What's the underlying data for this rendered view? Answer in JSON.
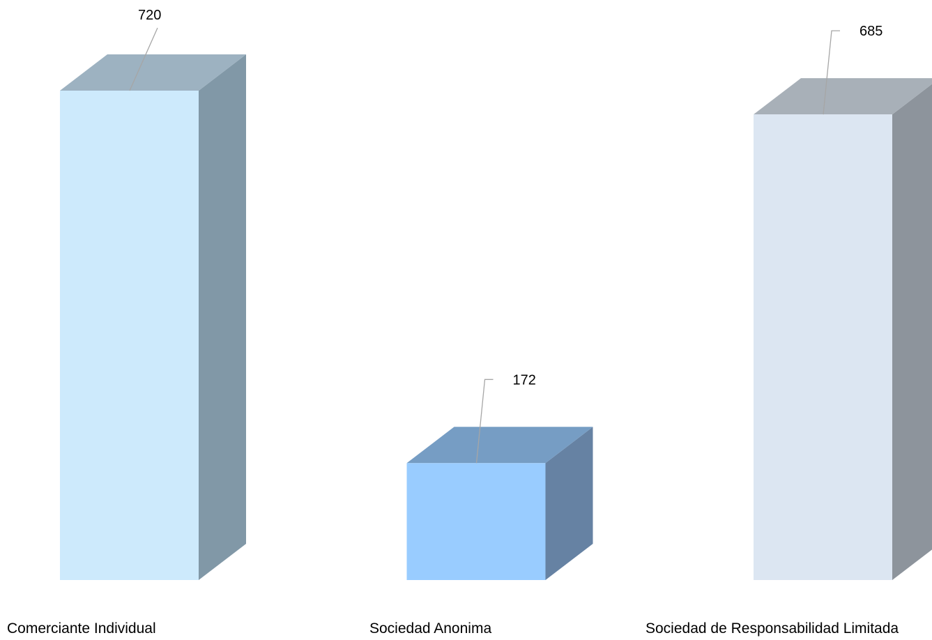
{
  "chart_data": {
    "type": "bar",
    "style": "3d-column",
    "title": "",
    "xlabel": "",
    "ylabel": "",
    "categories": [
      "Comerciante Individual",
      "Sociedad Anonima",
      "Sociedad de Responsabilidad Limitada"
    ],
    "values": [
      720,
      172,
      685
    ],
    "data_labels": [
      "720",
      "172",
      "685"
    ],
    "ylim": [
      0,
      720
    ],
    "grid": false,
    "legend": "none",
    "colors": [
      {
        "front": "#cdeafc",
        "top": "#9db2c1",
        "side": "#8198a7"
      },
      {
        "front": "#99ccff",
        "top": "#769dc4",
        "side": "#6682a3"
      },
      {
        "front": "#dce6f2",
        "top": "#a8b0b8",
        "side": "#8d949c"
      }
    ],
    "leader_color": "#a6a6a6"
  }
}
